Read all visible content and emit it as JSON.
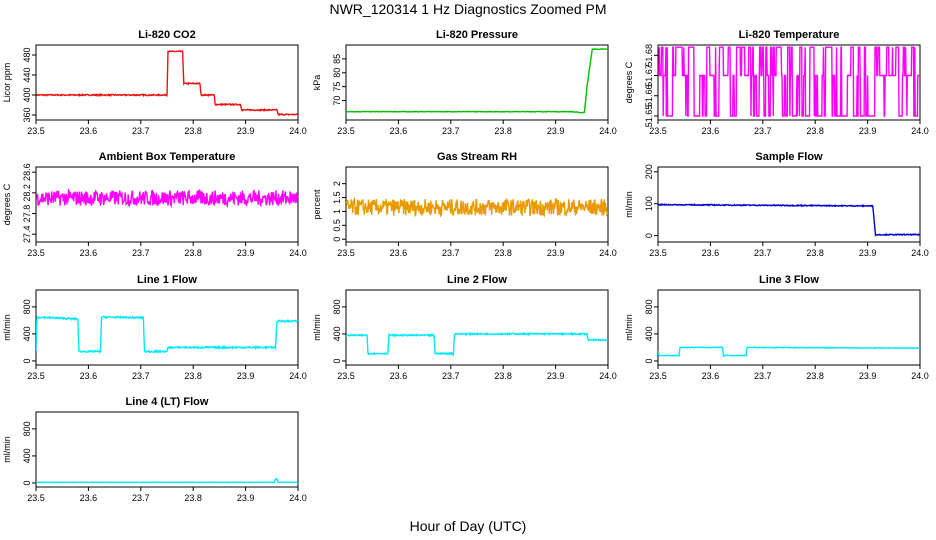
{
  "title": "NWR_120314  1 Hz Diagnostics Zoomed PM",
  "xlabel": "Hour of Day (UTC)",
  "chart_data": [
    {
      "type": "line",
      "title": "Li-820 CO2",
      "ylabel": "Licor ppm",
      "color": "#e8130e",
      "xlim": [
        23.5,
        24.0
      ],
      "ylim": [
        350,
        500
      ],
      "xticks": [
        23.5,
        23.6,
        23.7,
        23.8,
        23.9,
        24.0
      ],
      "yticks": [
        360,
        400,
        440,
        480
      ],
      "noise": 1.2,
      "x": [
        23.5,
        23.75,
        23.752,
        23.78,
        23.782,
        23.813,
        23.815,
        23.84,
        23.842,
        23.89,
        23.893,
        23.96,
        23.962,
        24.0
      ],
      "y": [
        400,
        400,
        487,
        487,
        423,
        423,
        400,
        400,
        381,
        381,
        370,
        370,
        361,
        361
      ]
    },
    {
      "type": "line",
      "title": "Li-820 Pressure",
      "ylabel": "kPa",
      "color": "#00c000",
      "xlim": [
        23.5,
        24.0
      ],
      "ylim": [
        63,
        90
      ],
      "xticks": [
        23.5,
        23.6,
        23.7,
        23.8,
        23.9,
        24.0
      ],
      "yticks": [
        70,
        75,
        80,
        85
      ],
      "noise": 0.08,
      "x": [
        23.5,
        23.93,
        23.95,
        23.955,
        23.96,
        23.965,
        23.97,
        24.0
      ],
      "y": [
        66,
        66,
        65.6,
        65.8,
        75,
        82,
        88.5,
        88.5
      ]
    },
    {
      "type": "line",
      "title": "Li-820 Temperature",
      "ylabel": "degrees C",
      "color": "#ff00ff",
      "xlim": [
        23.5,
        24.0
      ],
      "ylim": [
        51.648,
        51.6851
      ],
      "xticks": [
        23.5,
        23.6,
        23.7,
        23.8,
        23.9,
        24.0
      ],
      "yticks": [
        51.65,
        51.66,
        51.67,
        51.68
      ],
      "levels": [
        51.65,
        51.67,
        51.684
      ],
      "x": [
        23.5,
        24.0
      ],
      "y": [
        51.67,
        51.67
      ]
    },
    {
      "type": "line",
      "title": "Ambient Box Temperature",
      "ylabel": "degrees C",
      "color": "#ff00ff",
      "xlim": [
        23.5,
        24.0
      ],
      "ylim": [
        27.25,
        28.7
      ],
      "xticks": [
        23.5,
        23.6,
        23.7,
        23.8,
        23.9,
        24.0
      ],
      "yticks": [
        27.4,
        27.8,
        28.2,
        28.6
      ],
      "noise": 0.15,
      "x": [
        23.5,
        24.0
      ],
      "y": [
        28.1,
        28.1
      ]
    },
    {
      "type": "line",
      "title": "Gas Stream RH",
      "ylabel": "percent",
      "color": "#e89a00",
      "xlim": [
        23.5,
        24.0
      ],
      "ylim": [
        -0.1,
        2.6
      ],
      "xticks": [
        23.5,
        23.6,
        23.7,
        23.8,
        23.9,
        24.0
      ],
      "yticks": [
        0.0,
        0.5,
        1.0,
        1.5,
        2.0
      ],
      "noise": 0.3,
      "x": [
        23.5,
        24.0
      ],
      "y": [
        1.15,
        1.15
      ]
    },
    {
      "type": "line",
      "title": "Sample Flow",
      "ylabel": "ml/min",
      "color": "#0000d0",
      "xlim": [
        23.5,
        24.0
      ],
      "ylim": [
        -20,
        215
      ],
      "xticks": [
        23.5,
        23.6,
        23.7,
        23.8,
        23.9,
        24.0
      ],
      "yticks": [
        0,
        100,
        200
      ],
      "noise": 1.5,
      "x": [
        23.5,
        23.91,
        23.915,
        24.0
      ],
      "y": [
        97,
        93,
        3,
        3
      ]
    },
    {
      "type": "line",
      "title": "Line 1 Flow",
      "ylabel": "ml/min",
      "color": "#00e8ff",
      "xlim": [
        23.5,
        24.0
      ],
      "ylim": [
        -60,
        1050
      ],
      "xticks": [
        23.5,
        23.6,
        23.7,
        23.8,
        23.9,
        24.0
      ],
      "yticks": [
        0,
        400,
        800
      ],
      "noise": 12,
      "x": [
        23.5,
        23.502,
        23.58,
        23.582,
        23.623,
        23.625,
        23.705,
        23.707,
        23.75,
        23.752,
        23.957,
        23.96,
        24.0
      ],
      "y": [
        150,
        650,
        620,
        140,
        140,
        650,
        640,
        140,
        140,
        200,
        200,
        590,
        590
      ]
    },
    {
      "type": "line",
      "title": "Line 2 Flow",
      "ylabel": "ml/min",
      "color": "#00e8ff",
      "xlim": [
        23.5,
        24.0
      ],
      "ylim": [
        -60,
        1050
      ],
      "xticks": [
        23.5,
        23.6,
        23.7,
        23.8,
        23.9,
        24.0
      ],
      "yticks": [
        0,
        400,
        800
      ],
      "noise": 10,
      "x": [
        23.5,
        23.54,
        23.542,
        23.58,
        23.582,
        23.668,
        23.67,
        23.705,
        23.707,
        23.96,
        23.962,
        24.0
      ],
      "y": [
        380,
        380,
        110,
        110,
        380,
        380,
        110,
        110,
        400,
        400,
        310,
        310
      ]
    },
    {
      "type": "line",
      "title": "Line 3 Flow",
      "ylabel": "ml/min",
      "color": "#00e8ff",
      "xlim": [
        23.5,
        24.0
      ],
      "ylim": [
        -60,
        1050
      ],
      "xticks": [
        23.5,
        23.6,
        23.7,
        23.8,
        23.9,
        24.0
      ],
      "yticks": [
        0,
        400,
        800
      ],
      "noise": 5,
      "x": [
        23.5,
        23.502,
        23.54,
        23.542,
        23.623,
        23.625,
        23.668,
        23.67,
        24.0
      ],
      "y": [
        150,
        80,
        80,
        200,
        200,
        80,
        80,
        200,
        190
      ]
    },
    {
      "type": "line",
      "title": "Line 4 (LT) Flow",
      "ylabel": "ml/min",
      "color": "#00e8ff",
      "xlim": [
        23.5,
        24.0
      ],
      "ylim": [
        -60,
        1050
      ],
      "xticks": [
        23.5,
        23.6,
        23.7,
        23.8,
        23.9,
        24.0
      ],
      "yticks": [
        0,
        400,
        800
      ],
      "noise": 2,
      "x": [
        23.5,
        23.955,
        23.957,
        23.96,
        23.962,
        24.0
      ],
      "y": [
        10,
        10,
        60,
        60,
        10,
        10
      ]
    }
  ]
}
